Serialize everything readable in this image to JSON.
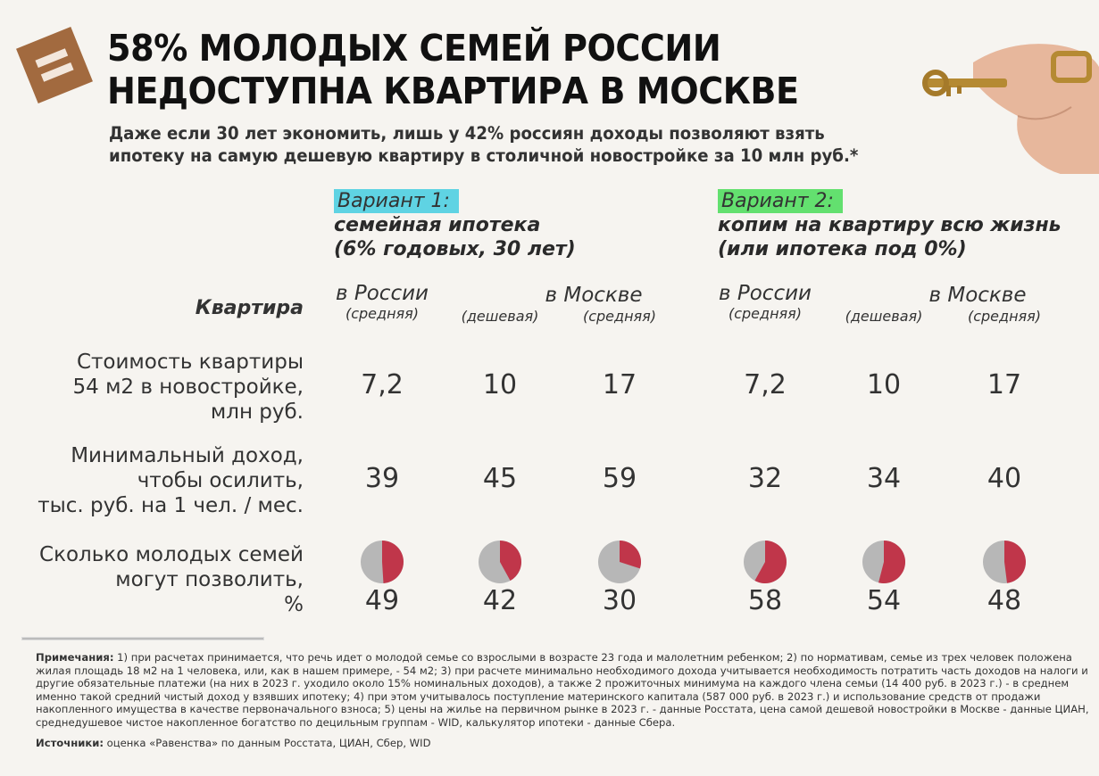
{
  "header": {
    "logo_icon": "equals-icon",
    "title_line1": "58% МОЛОДЫХ СЕМЕЙ РОССИИ",
    "title_line2": "НЕДОСТУПНА КВАРТИРА В МОСКВЕ",
    "subtitle_line1": "Даже если 30 лет экономить, лишь у 42% россиян доходы позволяют взять",
    "subtitle_line2": "ипотеку на самую дешевую квартиру в столичной новостройке за 10 млн руб.*"
  },
  "colors": {
    "accent": "#a26a3f",
    "pie_share": "#c0364a",
    "pie_rest": "#b7b7b7",
    "variant1_tag": "#5fd3e3",
    "variant2_tag": "#63e06f",
    "background": "#f6f4f0"
  },
  "variants": [
    {
      "tag": "Вариант 1:",
      "line1": "семейная ипотека",
      "line2": "(6% годовых, 30 лет)"
    },
    {
      "tag": "Вариант 2:",
      "line1": "копим на квартиру всю жизнь",
      "line2": "(или ипотека под 0%)"
    }
  ],
  "table": {
    "corner_label": "Квартира",
    "columns": [
      {
        "main": "в России",
        "sub": "(средняя)"
      },
      {
        "main": "в Москве",
        "sub": "(дешевая)"
      },
      {
        "sub": "(средняя)"
      },
      {
        "main": "в России",
        "sub": "(средняя)"
      },
      {
        "main": "в Москве",
        "sub": "(дешевая)"
      },
      {
        "sub": "(средняя)"
      }
    ],
    "rows": [
      {
        "label": [
          "Стоимость квартиры",
          "54 м2 в новостройке,",
          "млн руб."
        ],
        "values": [
          "7,2",
          "10",
          "17",
          "7,2",
          "10",
          "17"
        ]
      },
      {
        "label": [
          "Минимальный доход,",
          "чтобы осилить,",
          "тыс. руб. на 1 чел. / мес."
        ],
        "values": [
          "39",
          "45",
          "59",
          "32",
          "34",
          "40"
        ]
      },
      {
        "label": [
          "Сколько молодых семей",
          "могут позволить,",
          "%"
        ],
        "values": [
          "49",
          "42",
          "30",
          "58",
          "54",
          "48"
        ]
      }
    ]
  },
  "chart_data": {
    "type": "pie",
    "title": "Сколько молодых семей могут позволить, %",
    "categories": [
      "Вариант 1 — в России (средняя)",
      "Вариант 1 — в Москве (дешевая)",
      "Вариант 1 — в Москве (средняя)",
      "Вариант 2 — в России (средняя)",
      "Вариант 2 — в Москве (дешевая)",
      "Вариант 2 — в Москве (средняя)"
    ],
    "values": [
      49,
      42,
      30,
      58,
      54,
      48
    ],
    "unit": "%"
  },
  "notes": {
    "notes_label": "Примечания:",
    "notes_text": " 1) при расчетах принимается, что речь идет о молодой семье со взрослыми в возрасте 23 года и малолетним ребенком; 2) по нормативам, семье из трех человек положена жилая площадь 18 м2 на 1 человека, или, как в нашем примере, - 54 м2; 3) при расчете минимально необходимого дохода учитывается необходимость потратить часть доходов на налоги и другие обязательные платежи (на них в 2023 г. уходило около 15% номинальных доходов), а также 2 прожиточных минимума на каждого члена семьи (14 400 руб. в 2023 г.) - в среднем именно такой средний чистый доход у взявших ипотеку; 4) при этом учитывалось поступление материнского капитала (587 000 руб. в 2023 г.) и использование средств от продажи накопленного имущества в качестве первоначального взноса; 5) цены на жилье на первичном рынке в 2023 г. - данные Росстата, цена самой дешевой новостройки в Москве - данные ЦИАН, среднедушевое чистое накопленное богатство по децильным группам - WID, калькулятор ипотеки - данные Сбера.",
    "sources_label": "Источники:",
    "sources_text": " оценка «Равенства» по данным Росстата, ЦИАН, Сбер, WID"
  }
}
